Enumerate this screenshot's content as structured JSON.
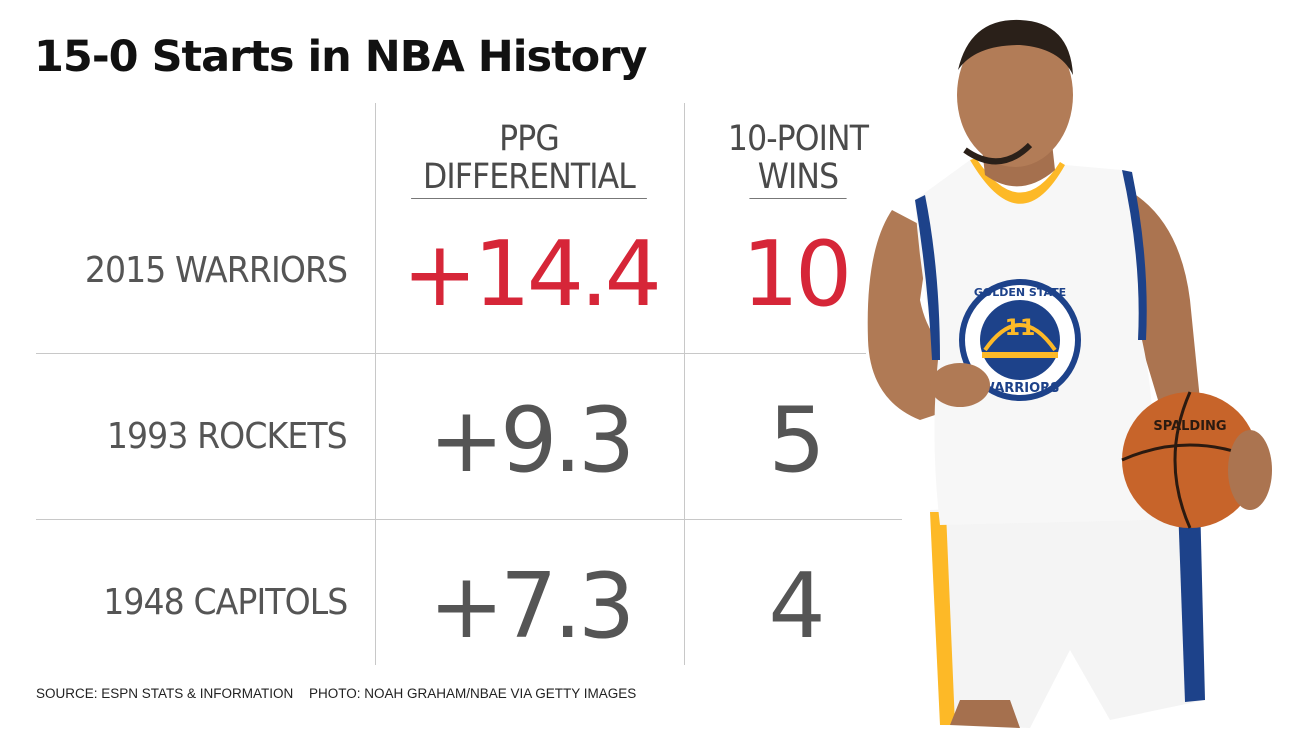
{
  "title": "15-0 Starts in NBA History",
  "columns": [
    {
      "line1": "PPG",
      "line2": "DIFFERENTIAL"
    },
    {
      "line1": "10-POINT",
      "line2": "WINS"
    }
  ],
  "footer": {
    "source": "SOURCE: ESPN STATS & INFORMATION",
    "photo": "PHOTO: NOAH GRAHAM/NBAE VIA GETTY IMAGES"
  },
  "player_jersey": {
    "team_text": "GOLDEN STATE",
    "number": "11",
    "name_text": "WARRIORS",
    "ball_brand": "SPALDING"
  },
  "colors": {
    "highlight": "#d62638",
    "text": "#555555",
    "gsw_blue": "#1d428a",
    "gsw_gold": "#fdb927"
  },
  "chart_data": {
    "type": "table",
    "title": "15-0 Starts in NBA History",
    "columns": [
      "PPG DIFFERENTIAL",
      "10-POINT WINS"
    ],
    "rows": [
      {
        "label": "2015 WARRIORS",
        "ppg_differential": "+14.4",
        "ten_point_wins": "10",
        "highlight": true
      },
      {
        "label": "1993 ROCKETS",
        "ppg_differential": "+9.3",
        "ten_point_wins": "5",
        "highlight": false
      },
      {
        "label": "1948 CAPITOLS",
        "ppg_differential": "+7.3",
        "ten_point_wins": "4",
        "highlight": false
      }
    ]
  }
}
